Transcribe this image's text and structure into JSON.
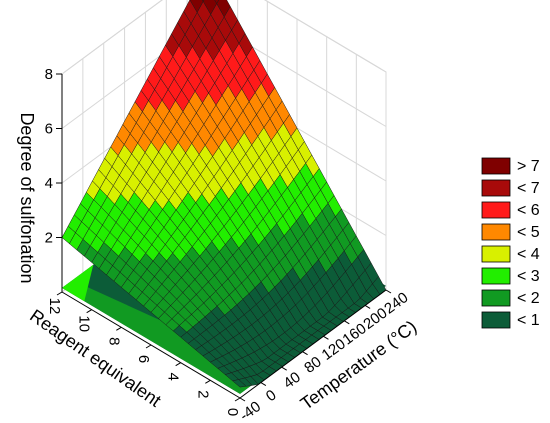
{
  "chart_data": {
    "type": "surface-3d",
    "zlabel": "Degree of sulfonation",
    "xlabel": "Temperature (°C)",
    "ylabel": "Reagent equivalent",
    "x_ticks": [
      "-40",
      "0",
      "40",
      "80",
      "120",
      "160",
      "200",
      "240"
    ],
    "y_ticks": [
      "0",
      "2",
      "4",
      "6",
      "8",
      "10",
      "12"
    ],
    "z_ticks": [
      "2",
      "4",
      "6",
      "8"
    ],
    "xlim": [
      -40,
      240
    ],
    "ylim": [
      0,
      12
    ],
    "zlim": [
      0,
      8
    ],
    "grid": true,
    "legend_position": "right",
    "surface_corners": [
      {
        "temperature": -40,
        "reagent_equivalent": 0,
        "degree_of_sulfonation": 0.4
      },
      {
        "temperature": 240,
        "reagent_equivalent": 0,
        "degree_of_sulfonation": 0.0
      },
      {
        "temperature": 240,
        "reagent_equivalent": 12,
        "degree_of_sulfonation": 8.0
      },
      {
        "temperature": -40,
        "reagent_equivalent": 12,
        "degree_of_sulfonation": 2.0
      }
    ],
    "legend": [
      {
        "label": "> 7",
        "color": "#7f0000"
      },
      {
        "label": "< 7",
        "color": "#a80a0a"
      },
      {
        "label": "< 6",
        "color": "#ff1a1a"
      },
      {
        "label": "< 5",
        "color": "#ff8800"
      },
      {
        "label": "< 4",
        "color": "#d8f000"
      },
      {
        "label": "< 3",
        "color": "#22ee00"
      },
      {
        "label": "< 2",
        "color": "#119a22"
      },
      {
        "label": "< 1",
        "color": "#0c5c38"
      }
    ]
  }
}
